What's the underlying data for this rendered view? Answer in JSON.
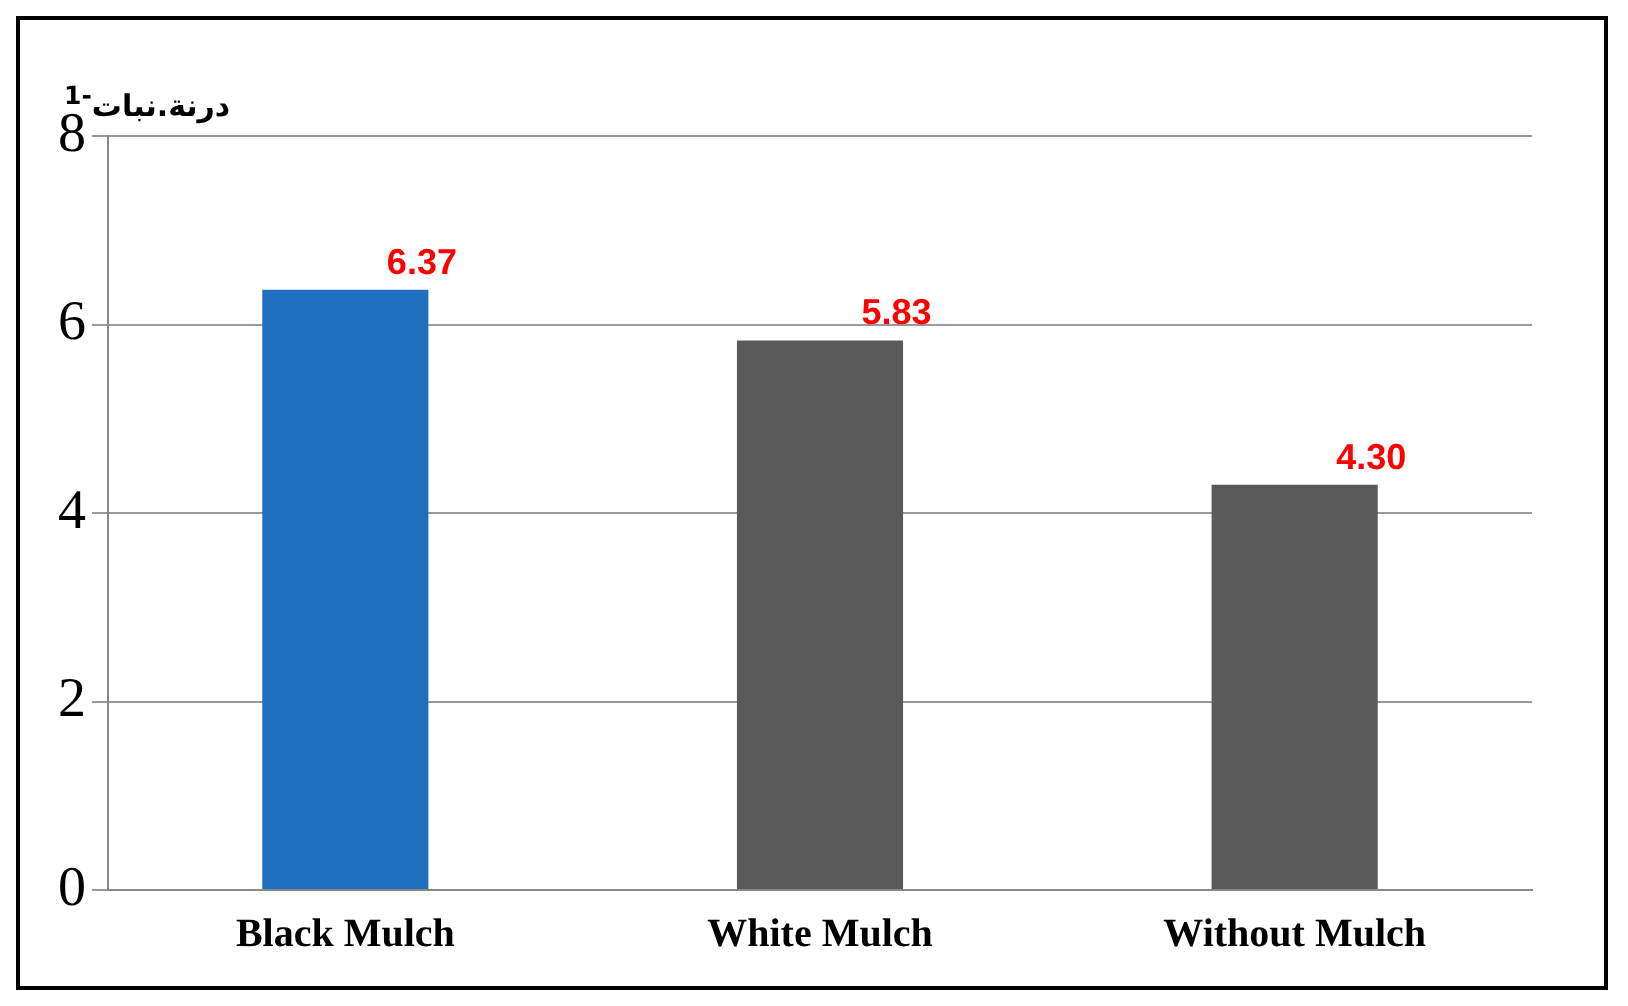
{
  "chart_data": {
    "type": "bar",
    "ylabel": "درنة.نبات$^{-1}$",
    "categories": [
      "Black Mulch",
      "White Mulch",
      "Without Mulch"
    ],
    "values": [
      6.37,
      5.83,
      4.3
    ],
    "colors": [
      "#1f6fbf",
      "#595959",
      "#595959"
    ],
    "value_labels": [
      "6.37",
      "5.83",
      "4.30"
    ],
    "ylim": [
      0,
      8
    ],
    "yticks": [
      0,
      2,
      4,
      6,
      8
    ],
    "grid": "y",
    "legend": false
  }
}
